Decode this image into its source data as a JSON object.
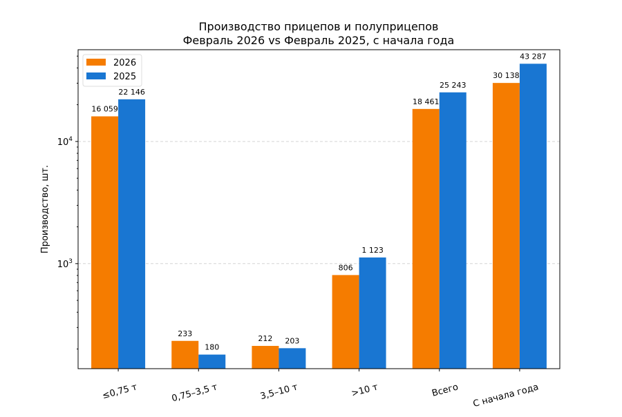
{
  "chart_data": {
    "type": "bar",
    "title": "Производство прицепов и полуприцепов",
    "subtitle": "Февраль 2026 vs Февраль 2025, с начала года",
    "xlabel": "",
    "ylabel": "Производство, шт.",
    "yscale": "log",
    "ylim": [
      138,
      56400
    ],
    "grid": "y-major-dashed",
    "legend_position": "top-left",
    "categories": [
      "≤0,75 т",
      "0,75–3,5 т",
      "3,5–10 т",
      ">10 т",
      "Всего",
      "С начала года"
    ],
    "y_ticks": [
      {
        "value": 1000,
        "label": "10",
        "exp": "3"
      },
      {
        "value": 10000,
        "label": "10",
        "exp": "4"
      }
    ],
    "series": [
      {
        "name": "2026",
        "color": "#f57c00",
        "values": [
          16059,
          233,
          212,
          806,
          18461,
          30138
        ],
        "labels": [
          "16 059",
          "233",
          "212",
          "806",
          "18 461",
          "30 138"
        ]
      },
      {
        "name": "2025",
        "color": "#1976d2",
        "values": [
          22146,
          180,
          203,
          1123,
          25243,
          43287
        ],
        "labels": [
          "22 146",
          "180",
          "203",
          "1 123",
          "25 243",
          "43 287"
        ]
      }
    ]
  }
}
